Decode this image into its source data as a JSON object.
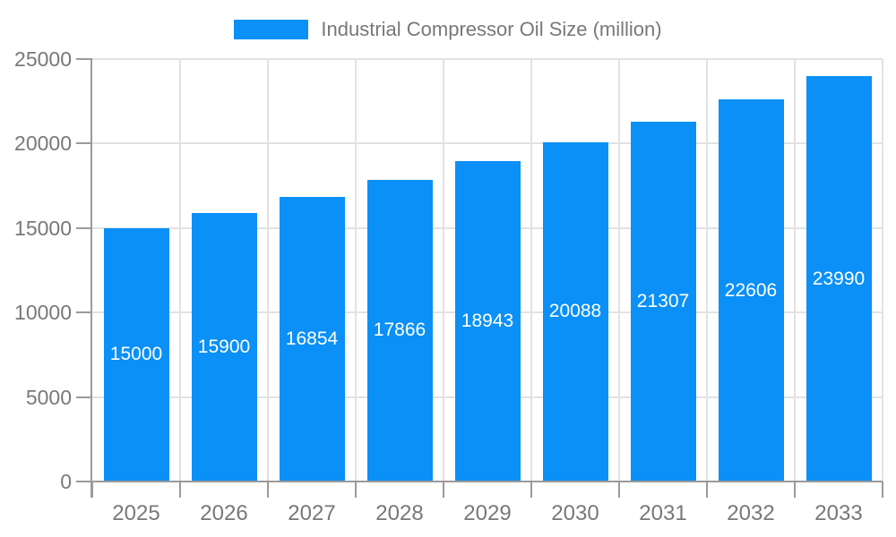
{
  "chart_data": {
    "type": "bar",
    "title": "Industrial Compressor Oil Size (million)",
    "categories": [
      "2025",
      "2026",
      "2027",
      "2028",
      "2029",
      "2030",
      "2031",
      "2032",
      "2033"
    ],
    "values": [
      15000,
      15900,
      16854,
      17866,
      18943,
      20088,
      21307,
      22606,
      23990
    ],
    "series_name": "Industrial Compressor Oil Size (million)",
    "xlabel": "",
    "ylabel": "",
    "ylim": [
      0,
      25000
    ],
    "ytick_labels": [
      "0",
      "5000",
      "10000",
      "15000",
      "20000",
      "25000"
    ],
    "grid": true,
    "legend_position": "top-center",
    "bar_label_position": "center",
    "colors": {
      "bar": "#0a90f6",
      "bar_label": "#ffffff",
      "axis": "#9a9a9a",
      "gridline": "#e2e2e2",
      "axis_text": "#787878"
    }
  }
}
